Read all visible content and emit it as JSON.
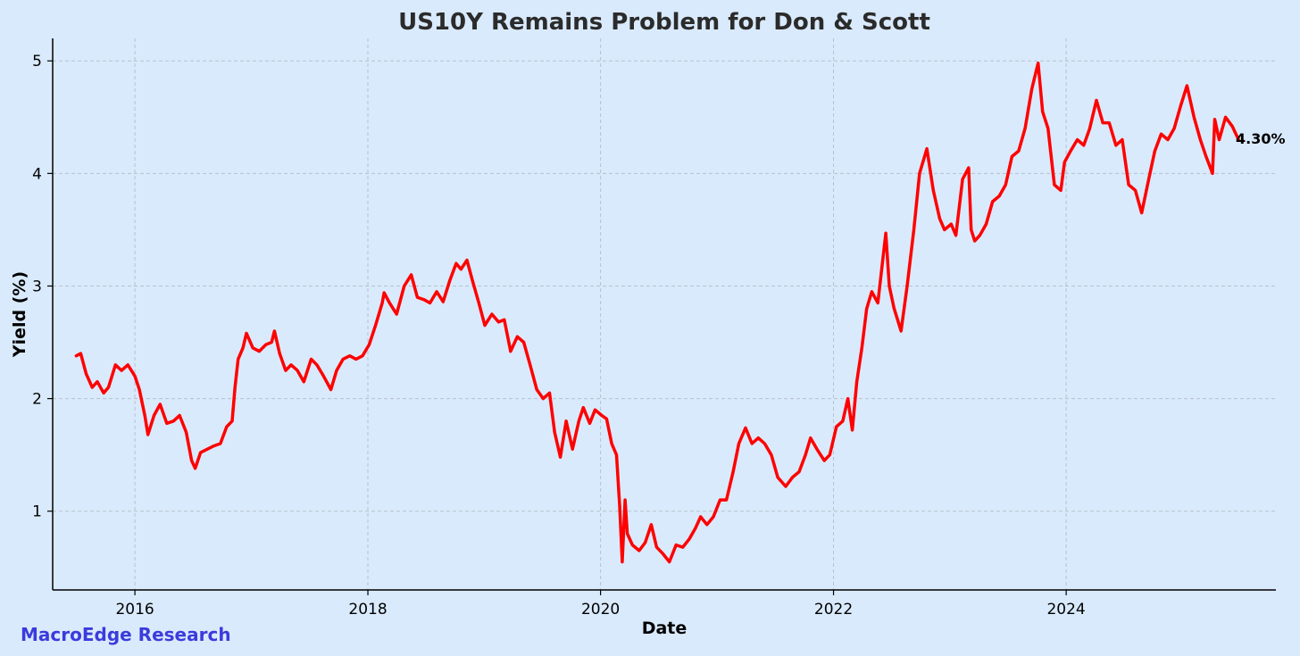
{
  "colors": {
    "background": "#d9eafc",
    "line": "#ff0000",
    "watermark": "#3b3bdc"
  },
  "watermark": "MacroEdge Research",
  "chart_data": {
    "type": "line",
    "title": "US10Y Remains Problem for Don & Scott",
    "xlabel": "Date",
    "ylabel": "Yield (%)",
    "grid": true,
    "xlim": [
      "2015-04-18",
      "2025-10-20"
    ],
    "ylim": [
      0.3,
      5.2
    ],
    "x_ticks": [
      {
        "date": "2016-01-01",
        "label": "2016"
      },
      {
        "date": "2018-01-01",
        "label": "2018"
      },
      {
        "date": "2020-01-01",
        "label": "2020"
      },
      {
        "date": "2022-01-01",
        "label": "2022"
      },
      {
        "date": "2024-01-01",
        "label": "2024"
      }
    ],
    "y_ticks": [
      1,
      2,
      3,
      4,
      5
    ],
    "last_value_label": "4.30%",
    "series": [
      {
        "values_x": [
          "2015-07-01",
          "2015-07-15",
          "2015-08-01",
          "2015-08-20",
          "2015-09-05",
          "2015-09-25",
          "2015-10-10",
          "2015-11-01",
          "2015-11-20",
          "2015-12-10",
          "2016-01-01",
          "2016-01-15",
          "2016-02-01",
          "2016-02-11",
          "2016-03-01",
          "2016-03-20",
          "2016-04-10",
          "2016-05-01",
          "2016-05-20",
          "2016-06-10",
          "2016-06-27",
          "2016-07-08",
          "2016-07-25",
          "2016-08-15",
          "2016-09-05",
          "2016-09-25",
          "2016-10-15",
          "2016-11-01",
          "2016-11-10",
          "2016-11-20",
          "2016-12-05",
          "2016-12-16",
          "2017-01-05",
          "2017-01-25",
          "2017-02-15",
          "2017-03-05",
          "2017-03-14",
          "2017-03-30",
          "2017-04-18",
          "2017-05-05",
          "2017-05-25",
          "2017-06-14",
          "2017-07-07",
          "2017-07-25",
          "2017-08-15",
          "2017-09-07",
          "2017-09-25",
          "2017-10-15",
          "2017-11-05",
          "2017-11-25",
          "2017-12-15",
          "2018-01-05",
          "2018-01-25",
          "2018-02-15",
          "2018-02-21",
          "2018-03-10",
          "2018-04-01",
          "2018-04-25",
          "2018-05-17",
          "2018-06-05",
          "2018-06-25",
          "2018-07-15",
          "2018-08-05",
          "2018-08-25",
          "2018-09-15",
          "2018-10-05",
          "2018-10-20",
          "2018-11-08",
          "2018-11-25",
          "2018-12-15",
          "2019-01-03",
          "2019-01-25",
          "2019-02-15",
          "2019-03-05",
          "2019-03-25",
          "2019-04-15",
          "2019-05-05",
          "2019-05-25",
          "2019-06-15",
          "2019-07-05",
          "2019-07-25",
          "2019-08-10",
          "2019-08-28",
          "2019-09-15",
          "2019-10-05",
          "2019-10-25",
          "2019-11-08",
          "2019-11-28",
          "2019-12-15",
          "2020-01-05",
          "2020-01-20",
          "2020-02-05",
          "2020-02-20",
          "2020-03-01",
          "2020-03-09",
          "2020-03-18",
          "2020-03-25",
          "2020-04-10",
          "2020-05-01",
          "2020-05-20",
          "2020-06-08",
          "2020-06-25",
          "2020-07-15",
          "2020-08-04",
          "2020-08-25",
          "2020-09-15",
          "2020-10-05",
          "2020-10-25",
          "2020-11-10",
          "2020-11-30",
          "2020-12-20",
          "2021-01-10",
          "2021-01-30",
          "2021-02-20",
          "2021-03-10",
          "2021-03-31",
          "2021-04-20",
          "2021-05-10",
          "2021-05-30",
          "2021-06-20",
          "2021-07-10",
          "2021-08-04",
          "2021-08-25",
          "2021-09-15",
          "2021-10-05",
          "2021-10-21",
          "2021-11-10",
          "2021-12-03",
          "2021-12-20",
          "2022-01-10",
          "2022-01-30",
          "2022-02-15",
          "2022-03-01",
          "2022-03-15",
          "2022-03-31",
          "2022-04-15",
          "2022-05-01",
          "2022-05-20",
          "2022-06-14",
          "2022-06-25",
          "2022-07-10",
          "2022-08-01",
          "2022-08-20",
          "2022-09-10",
          "2022-09-28",
          "2022-10-21",
          "2022-11-10",
          "2022-11-30",
          "2022-12-15",
          "2023-01-05",
          "2023-01-20",
          "2023-02-10",
          "2023-03-01",
          "2023-03-09",
          "2023-03-20",
          "2023-04-05",
          "2023-04-25",
          "2023-05-15",
          "2023-06-05",
          "2023-06-25",
          "2023-07-15",
          "2023-08-05",
          "2023-08-25",
          "2023-09-15",
          "2023-10-05",
          "2023-10-19",
          "2023-11-05",
          "2023-11-25",
          "2023-12-15",
          "2023-12-27",
          "2024-01-15",
          "2024-02-05",
          "2024-02-25",
          "2024-03-15",
          "2024-04-05",
          "2024-04-25",
          "2024-05-15",
          "2024-06-05",
          "2024-06-25",
          "2024-07-15",
          "2024-08-05",
          "2024-08-25",
          "2024-09-16",
          "2024-10-05",
          "2024-10-25",
          "2024-11-15",
          "2024-12-05",
          "2024-12-25",
          "2025-01-14",
          "2025-02-05",
          "2025-02-25",
          "2025-03-15",
          "2025-04-04",
          "2025-04-11",
          "2025-04-25",
          "2025-05-15",
          "2025-06-05",
          "2025-06-25",
          "2025-07-05"
        ],
        "values": [
          2.38,
          2.4,
          2.22,
          2.1,
          2.15,
          2.05,
          2.1,
          2.3,
          2.25,
          2.3,
          2.2,
          2.08,
          1.85,
          1.68,
          1.85,
          1.95,
          1.78,
          1.8,
          1.85,
          1.7,
          1.45,
          1.38,
          1.52,
          1.55,
          1.58,
          1.6,
          1.75,
          1.8,
          2.1,
          2.35,
          2.45,
          2.58,
          2.45,
          2.42,
          2.48,
          2.5,
          2.6,
          2.4,
          2.25,
          2.3,
          2.25,
          2.15,
          2.35,
          2.3,
          2.2,
          2.08,
          2.25,
          2.35,
          2.38,
          2.35,
          2.38,
          2.48,
          2.65,
          2.85,
          2.94,
          2.85,
          2.75,
          3.0,
          3.1,
          2.9,
          2.88,
          2.85,
          2.95,
          2.86,
          3.05,
          3.2,
          3.15,
          3.23,
          3.05,
          2.85,
          2.65,
          2.75,
          2.68,
          2.7,
          2.42,
          2.55,
          2.5,
          2.3,
          2.08,
          2.0,
          2.05,
          1.7,
          1.48,
          1.8,
          1.55,
          1.8,
          1.92,
          1.78,
          1.9,
          1.85,
          1.82,
          1.6,
          1.5,
          1.05,
          0.55,
          1.1,
          0.8,
          0.7,
          0.65,
          0.72,
          0.88,
          0.68,
          0.62,
          0.55,
          0.7,
          0.68,
          0.75,
          0.85,
          0.95,
          0.88,
          0.95,
          1.1,
          1.1,
          1.35,
          1.6,
          1.74,
          1.6,
          1.65,
          1.6,
          1.5,
          1.3,
          1.22,
          1.3,
          1.35,
          1.5,
          1.65,
          1.55,
          1.45,
          1.5,
          1.75,
          1.8,
          2.0,
          1.72,
          2.15,
          2.45,
          2.8,
          2.95,
          2.85,
          3.47,
          3.0,
          2.8,
          2.6,
          3.0,
          3.5,
          4.0,
          4.22,
          3.85,
          3.6,
          3.5,
          3.55,
          3.45,
          3.95,
          4.05,
          3.5,
          3.4,
          3.45,
          3.55,
          3.75,
          3.8,
          3.9,
          4.15,
          4.2,
          4.4,
          4.75,
          4.98,
          4.55,
          4.4,
          3.9,
          3.85,
          4.1,
          4.2,
          4.3,
          4.25,
          4.4,
          4.65,
          4.45,
          4.45,
          4.25,
          4.3,
          3.9,
          3.85,
          3.65,
          3.95,
          4.2,
          4.35,
          4.3,
          4.4,
          4.6,
          4.78,
          4.5,
          4.3,
          4.15,
          4.0,
          4.48,
          4.3,
          4.5,
          4.42,
          4.3
        ]
      }
    ]
  }
}
